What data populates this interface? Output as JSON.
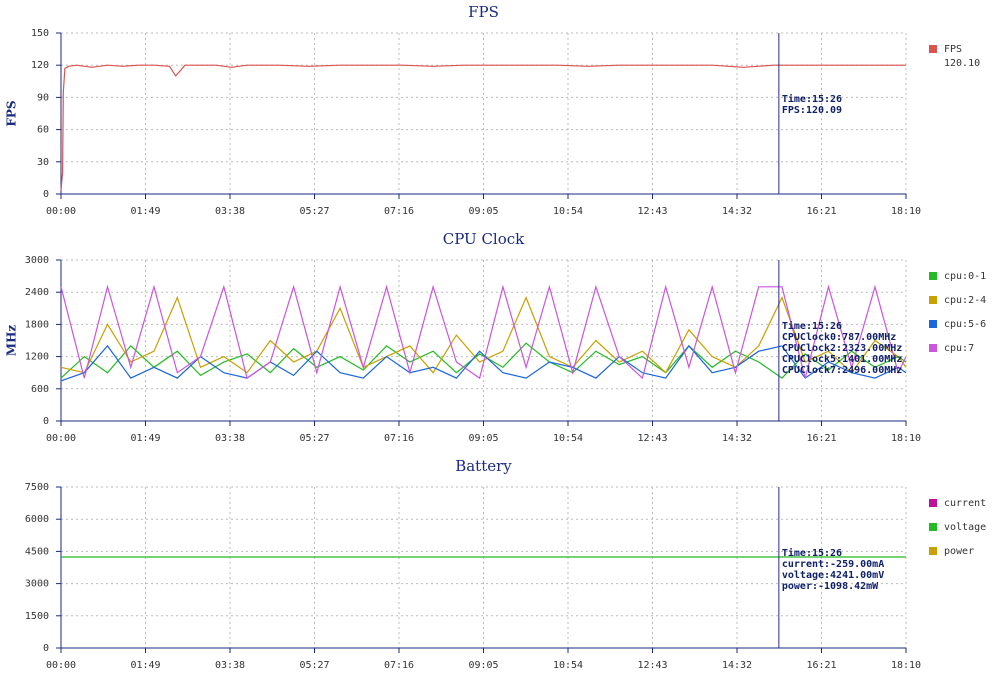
{
  "chart_data": [
    {
      "type": "line",
      "title": "FPS",
      "ylabel": "FPS",
      "x": [
        0,
        1,
        2,
        3,
        5,
        10,
        20,
        40,
        60,
        80,
        100,
        120,
        140,
        148,
        160,
        200,
        220,
        240,
        280,
        320,
        360,
        400,
        440,
        480,
        520,
        560,
        600,
        640,
        680,
        720,
        760,
        800,
        840,
        880,
        920,
        960,
        1000,
        1040,
        1080,
        1090
      ],
      "series": [
        {
          "name": "FPS",
          "color": "#d9534f",
          "legend_value": "120.10",
          "values": [
            3,
            12,
            20,
            95,
            117,
            119,
            120,
            118,
            120,
            119,
            120,
            120,
            119,
            110,
            120,
            120,
            118,
            120,
            120,
            119,
            120,
            120,
            120,
            119,
            120,
            120,
            120,
            120,
            119,
            120,
            120,
            120,
            120,
            118,
            120,
            120,
            120,
            120,
            120,
            120
          ]
        }
      ],
      "xlim": [
        0,
        1090
      ],
      "xticks": [
        {
          "value": 0,
          "label": "00:00"
        },
        {
          "value": 109,
          "label": "01:49"
        },
        {
          "value": 218,
          "label": "03:38"
        },
        {
          "value": 327,
          "label": "05:27"
        },
        {
          "value": 436,
          "label": "07:16"
        },
        {
          "value": 545,
          "label": "09:05"
        },
        {
          "value": 654,
          "label": "10:54"
        },
        {
          "value": 763,
          "label": "12:43"
        },
        {
          "value": 872,
          "label": "14:32"
        },
        {
          "value": 981,
          "label": "16:21"
        },
        {
          "value": 1090,
          "label": "18:10"
        }
      ],
      "ylim": [
        0,
        150
      ],
      "yticks": [
        0,
        30,
        60,
        90,
        120,
        150
      ],
      "grid": true,
      "cursor": {
        "value": 926,
        "label": "Time:15:26"
      },
      "annotations": [
        "FPS:120.09"
      ]
    },
    {
      "type": "line",
      "title": "CPU Clock",
      "ylabel": "MHz",
      "x": [
        0,
        30,
        60,
        90,
        120,
        150,
        180,
        210,
        240,
        270,
        300,
        330,
        360,
        390,
        420,
        450,
        480,
        510,
        540,
        570,
        600,
        630,
        660,
        690,
        720,
        750,
        780,
        810,
        840,
        870,
        900,
        930,
        960,
        990,
        1020,
        1050,
        1080,
        1090
      ],
      "series": [
        {
          "name": "cpu:0-1",
          "color": "#22bb22",
          "values": [
            800,
            1200,
            900,
            1400,
            1000,
            1300,
            850,
            1100,
            1250,
            900,
            1350,
            1000,
            1200,
            950,
            1400,
            1100,
            1300,
            900,
            1250,
            1000,
            1450,
            1100,
            900,
            1300,
            1050,
            1200,
            900,
            1400,
            1000,
            1300,
            1100,
            800,
            1250,
            950,
            1300,
            1000,
            1200,
            1100
          ]
        },
        {
          "name": "cpu:2-4",
          "color": "#c8a000",
          "values": [
            1000,
            900,
            1800,
            1100,
            1300,
            2300,
            1000,
            1200,
            900,
            1500,
            1100,
            1300,
            2100,
            1000,
            1200,
            1400,
            900,
            1600,
            1100,
            1300,
            2300,
            1200,
            1000,
            1500,
            1100,
            1300,
            900,
            1700,
            1200,
            1000,
            1400,
            2300,
            1100,
            1300,
            900,
            1500,
            1200,
            1000
          ]
        },
        {
          "name": "cpu:5-6",
          "color": "#1a66dd",
          "values": [
            750,
            900,
            1400,
            800,
            1000,
            800,
            1200,
            900,
            800,
            1100,
            850,
            1300,
            900,
            800,
            1200,
            900,
            1000,
            800,
            1300,
            900,
            800,
            1100,
            1000,
            800,
            1200,
            900,
            800,
            1400,
            900,
            1000,
            1300,
            1400,
            800,
            1100,
            900,
            800,
            1000,
            900
          ]
        },
        {
          "name": "cpu:7",
          "color": "#cc55dd",
          "values": [
            2500,
            800,
            2500,
            1000,
            2500,
            900,
            1200,
            2500,
            800,
            1100,
            2500,
            900,
            2500,
            1000,
            2500,
            900,
            2500,
            1100,
            800,
            2500,
            1000,
            2500,
            900,
            2500,
            1200,
            800,
            2500,
            1000,
            2500,
            900,
            2500,
            2500,
            800,
            2500,
            1000,
            2500,
            900,
            1200
          ]
        }
      ],
      "xlim": [
        0,
        1090
      ],
      "xticks": [
        {
          "value": 0,
          "label": "00:00"
        },
        {
          "value": 109,
          "label": "01:49"
        },
        {
          "value": 218,
          "label": "03:38"
        },
        {
          "value": 327,
          "label": "05:27"
        },
        {
          "value": 436,
          "label": "07:16"
        },
        {
          "value": 545,
          "label": "09:05"
        },
        {
          "value": 654,
          "label": "10:54"
        },
        {
          "value": 763,
          "label": "12:43"
        },
        {
          "value": 872,
          "label": "14:32"
        },
        {
          "value": 981,
          "label": "16:21"
        },
        {
          "value": 1090,
          "label": "18:10"
        }
      ],
      "ylim": [
        0,
        3000
      ],
      "yticks": [
        0,
        600,
        1200,
        1800,
        2400,
        3000
      ],
      "grid": true,
      "cursor": {
        "value": 926,
        "label": "Time:15:26"
      },
      "annotations": [
        "CPUClock0:787.00MHz",
        "CPUClock2:2323.00MHz",
        "CPUClock5:1401.00MHz",
        "CPUClock7:2496.00MHz"
      ]
    },
    {
      "type": "line",
      "title": "Battery",
      "x": [
        0,
        1090
      ],
      "series": [
        {
          "name": "current",
          "color": "#c0109c",
          "values": [
            null,
            null
          ]
        },
        {
          "name": "voltage",
          "color": "#22bb22",
          "values": [
            4241,
            4241
          ]
        },
        {
          "name": "power",
          "color": "#c8a000",
          "values": [
            null,
            null
          ]
        }
      ],
      "xlim": [
        0,
        1090
      ],
      "xticks": [
        {
          "value": 0,
          "label": "00:00"
        },
        {
          "value": 109,
          "label": "01:49"
        },
        {
          "value": 218,
          "label": "03:38"
        },
        {
          "value": 327,
          "label": "05:27"
        },
        {
          "value": 436,
          "label": "07:16"
        },
        {
          "value": 545,
          "label": "09:05"
        },
        {
          "value": 654,
          "label": "10:54"
        },
        {
          "value": 763,
          "label": "12:43"
        },
        {
          "value": 872,
          "label": "14:32"
        },
        {
          "value": 981,
          "label": "16:21"
        },
        {
          "value": 1090,
          "label": "18:10"
        }
      ],
      "ylim": [
        0,
        7500
      ],
      "yticks": [
        0,
        1500,
        3000,
        4500,
        6000,
        7500
      ],
      "grid": true,
      "cursor": {
        "value": 926,
        "label": "Time:15:26"
      },
      "annotations": [
        "current:-259.00mA",
        "voltage:4241.00mV",
        "power:-1098.42mW"
      ]
    }
  ]
}
